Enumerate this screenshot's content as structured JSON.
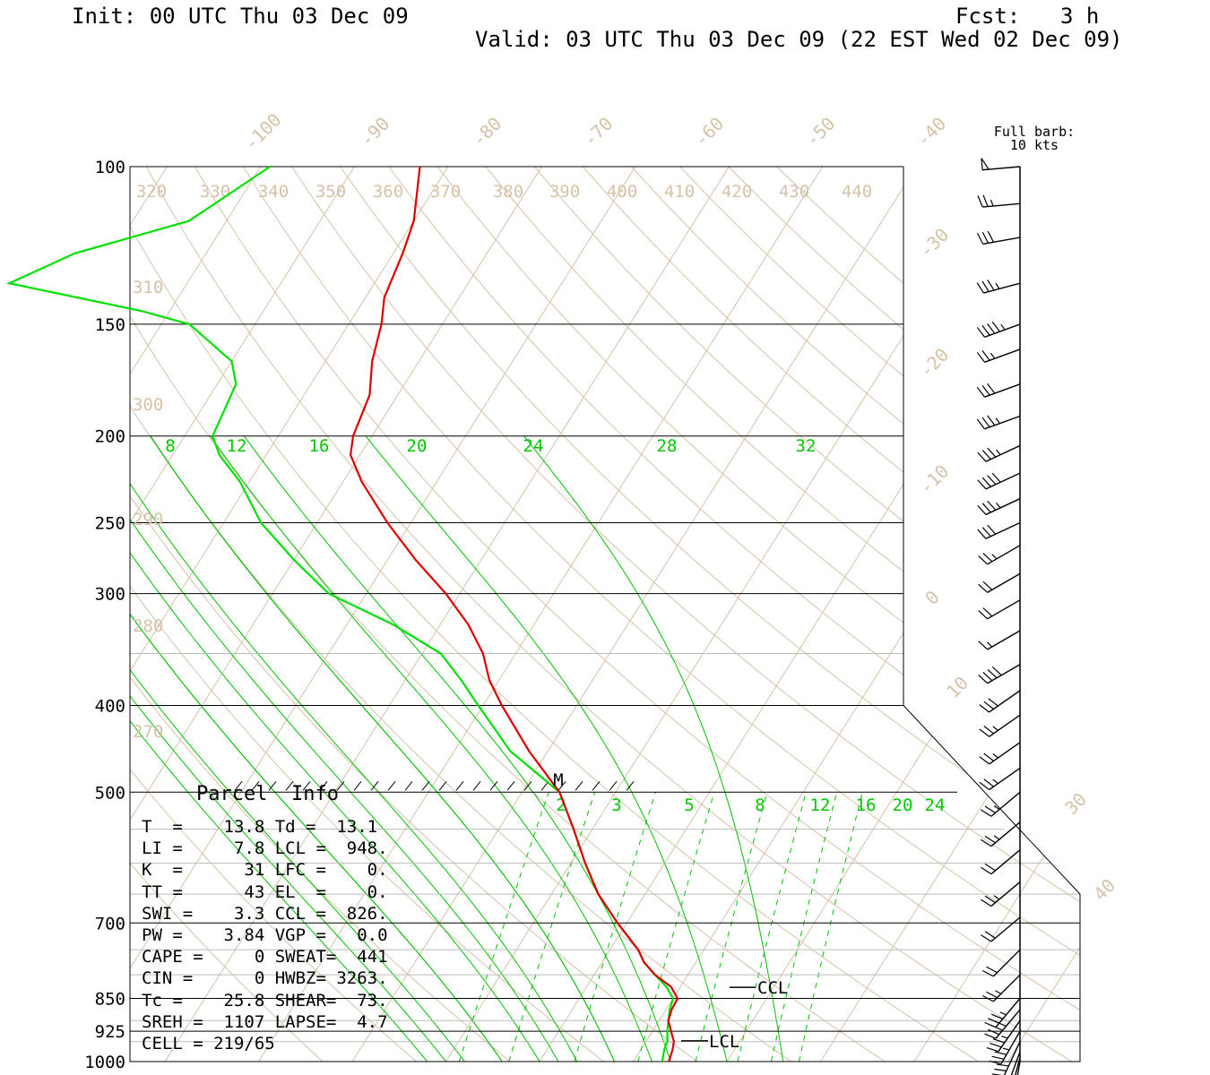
{
  "header": {
    "init": "Init: 00 UTC Thu 03 Dec 09",
    "fcst_label": "Fcst:",
    "fcst_value": "3 h",
    "valid": "Valid: 03 UTC Thu 03 Dec 09 (22 EST Wed 02 Dec 09)"
  },
  "barb_legend": {
    "line1": "Full barb:",
    "line2": "10 kts"
  },
  "colors": {
    "temperature": "#dd0000",
    "dewpoint": "#00e000",
    "moist_adiabat": "#00c000",
    "mixing_ratio": "#00c000",
    "isotherm": "#d6c2a8",
    "dry_adiabat": "#d6c2a8",
    "isobar": "#000000"
  },
  "parcel_info": {
    "title": "Parcel  Info",
    "rows": [
      "T  =    13.8 Td =  13.1",
      "LI =     7.8 LCL =  948.",
      "K  =      31 LFC =    0.",
      "TT =      43 EL  =    0.",
      "SWI =    3.3 CCL =  826.",
      "PW =    3.84 VGP =   0.0",
      "CAPE =     0 SWEAT=  441",
      "CIN =      0 HWBZ= 3263.",
      "Tc =    25.8 SHEAR=  73.",
      "SREH =  1107 LAPSE=  4.7",
      "CELL = 219/65"
    ]
  },
  "chart_data": {
    "type": "skew-t log-p sounding",
    "y_axis": {
      "label": "Pressure (hPa)",
      "scale": "log",
      "range": [
        1000,
        100
      ],
      "ticks": [
        "100",
        "150",
        "200",
        "250",
        "300",
        "400",
        "500",
        "700",
        "850",
        "925",
        "1000"
      ]
    },
    "isotherm_labels": [
      "-100",
      "-90",
      "-80",
      "-70",
      "-60",
      "-50",
      "-40",
      "-30",
      "-20",
      "-10",
      "0",
      "10",
      "30",
      "40"
    ],
    "theta_labels": [
      "320",
      "330",
      "340",
      "350",
      "360",
      "370",
      "380",
      "390",
      "400",
      "410",
      "420",
      "430",
      "440",
      "310",
      "300",
      "290",
      "280",
      "270"
    ],
    "moist_adiabat_labels": [
      "8",
      "12",
      "16",
      "20",
      "24",
      "28",
      "32"
    ],
    "mixing_ratio_labels": [
      "2",
      "3",
      "5",
      "8",
      "12",
      "16",
      "20",
      "24"
    ],
    "markers": [
      "M",
      "CCL",
      "LCL"
    ],
    "temperature": [
      {
        "p": 1000,
        "t": 13.8
      },
      {
        "p": 970,
        "t": 13.4
      },
      {
        "p": 950,
        "t": 13.0
      },
      {
        "p": 925,
        "t": 12.0
      },
      {
        "p": 900,
        "t": 11.0
      },
      {
        "p": 875,
        "t": 10.6
      },
      {
        "p": 850,
        "t": 10.5
      },
      {
        "p": 825,
        "t": 9.0
      },
      {
        "p": 800,
        "t": 6.5
      },
      {
        "p": 775,
        "t": 4.5
      },
      {
        "p": 750,
        "t": 3.0
      },
      {
        "p": 700,
        "t": -1.0
      },
      {
        "p": 650,
        "t": -5.0
      },
      {
        "p": 600,
        "t": -8.5
      },
      {
        "p": 550,
        "t": -12.0
      },
      {
        "p": 500,
        "t": -16.0
      },
      {
        "p": 450,
        "t": -22.0
      },
      {
        "p": 400,
        "t": -28.0
      },
      {
        "p": 375,
        "t": -31.0
      },
      {
        "p": 350,
        "t": -33.5
      },
      {
        "p": 325,
        "t": -37.0
      },
      {
        "p": 300,
        "t": -41.5
      },
      {
        "p": 275,
        "t": -47.0
      },
      {
        "p": 250,
        "t": -52.5
      },
      {
        "p": 225,
        "t": -58.0
      },
      {
        "p": 210,
        "t": -61.0
      },
      {
        "p": 200,
        "t": -62.0
      },
      {
        "p": 180,
        "t": -63.0
      },
      {
        "p": 165,
        "t": -65.0
      },
      {
        "p": 150,
        "t": -66.5
      },
      {
        "p": 140,
        "t": -68.0
      },
      {
        "p": 125,
        "t": -69.0
      },
      {
        "p": 115,
        "t": -70.0
      },
      {
        "p": 100,
        "t": -73.0
      }
    ],
    "dewpoint": [
      {
        "p": 1000,
        "t": 13.1
      },
      {
        "p": 970,
        "t": 12.5
      },
      {
        "p": 950,
        "t": 12.3
      },
      {
        "p": 925,
        "t": 11.6
      },
      {
        "p": 900,
        "t": 11.0
      },
      {
        "p": 875,
        "t": 10.4
      },
      {
        "p": 850,
        "t": 10.0
      },
      {
        "p": 825,
        "t": 8.5
      },
      {
        "p": 800,
        "t": 6.5
      },
      {
        "p": 775,
        "t": 4.5
      },
      {
        "p": 750,
        "t": 3.0
      },
      {
        "p": 700,
        "t": -1.0
      },
      {
        "p": 650,
        "t": -5.0
      },
      {
        "p": 600,
        "t": -8.5
      },
      {
        "p": 550,
        "t": -12.0
      },
      {
        "p": 500,
        "t": -16.0
      },
      {
        "p": 450,
        "t": -24.0
      },
      {
        "p": 400,
        "t": -30.5
      },
      {
        "p": 375,
        "t": -34.0
      },
      {
        "p": 350,
        "t": -38.0
      },
      {
        "p": 325,
        "t": -45.0
      },
      {
        "p": 300,
        "t": -54.0
      },
      {
        "p": 275,
        "t": -60.0
      },
      {
        "p": 250,
        "t": -66.0
      },
      {
        "p": 225,
        "t": -71.0
      },
      {
        "p": 210,
        "t": -75.0
      },
      {
        "p": 200,
        "t": -77.0
      },
      {
        "p": 175,
        "t": -78.0
      },
      {
        "p": 165,
        "t": -80.0
      },
      {
        "p": 150,
        "t": -87.0
      },
      {
        "p": 145,
        "t": -93.0
      },
      {
        "p": 135,
        "t": -109.0
      },
      {
        "p": 125,
        "t": -104.0
      },
      {
        "p": 115,
        "t": -94.0
      },
      {
        "p": 100,
        "t": -89.0
      }
    ],
    "wind_barbs": [
      {
        "p": 100,
        "dir": 265,
        "spd": 50
      },
      {
        "p": 110,
        "dir": 265,
        "spd": 25
      },
      {
        "p": 120,
        "dir": 260,
        "spd": 30
      },
      {
        "p": 135,
        "dir": 255,
        "spd": 35
      },
      {
        "p": 150,
        "dir": 250,
        "spd": 45
      },
      {
        "p": 160,
        "dir": 250,
        "spd": 25
      },
      {
        "p": 175,
        "dir": 250,
        "spd": 30
      },
      {
        "p": 190,
        "dir": 250,
        "spd": 35
      },
      {
        "p": 205,
        "dir": 245,
        "spd": 35
      },
      {
        "p": 220,
        "dir": 245,
        "spd": 40
      },
      {
        "p": 235,
        "dir": 245,
        "spd": 35
      },
      {
        "p": 250,
        "dir": 245,
        "spd": 30
      },
      {
        "p": 265,
        "dir": 240,
        "spd": 25
      },
      {
        "p": 285,
        "dir": 240,
        "spd": 20
      },
      {
        "p": 305,
        "dir": 240,
        "spd": 20
      },
      {
        "p": 330,
        "dir": 240,
        "spd": 15
      },
      {
        "p": 360,
        "dir": 240,
        "spd": 40
      },
      {
        "p": 385,
        "dir": 235,
        "spd": 30
      },
      {
        "p": 410,
        "dir": 235,
        "spd": 25
      },
      {
        "p": 440,
        "dir": 235,
        "spd": 25
      },
      {
        "p": 470,
        "dir": 235,
        "spd": 25
      },
      {
        "p": 500,
        "dir": 230,
        "spd": 25
      },
      {
        "p": 540,
        "dir": 230,
        "spd": 25
      },
      {
        "p": 580,
        "dir": 230,
        "spd": 20
      },
      {
        "p": 630,
        "dir": 230,
        "spd": 25
      },
      {
        "p": 690,
        "dir": 230,
        "spd": 20
      },
      {
        "p": 750,
        "dir": 225,
        "spd": 20
      },
      {
        "p": 800,
        "dir": 225,
        "spd": 25
      },
      {
        "p": 850,
        "dir": 220,
        "spd": 35
      },
      {
        "p": 875,
        "dir": 220,
        "spd": 40
      },
      {
        "p": 900,
        "dir": 215,
        "spd": 35
      },
      {
        "p": 925,
        "dir": 210,
        "spd": 35
      },
      {
        "p": 950,
        "dir": 205,
        "spd": 30
      },
      {
        "p": 975,
        "dir": 200,
        "spd": 30
      },
      {
        "p": 990,
        "dir": 195,
        "spd": 25
      },
      {
        "p": 1000,
        "dir": 190,
        "spd": 25
      }
    ]
  }
}
